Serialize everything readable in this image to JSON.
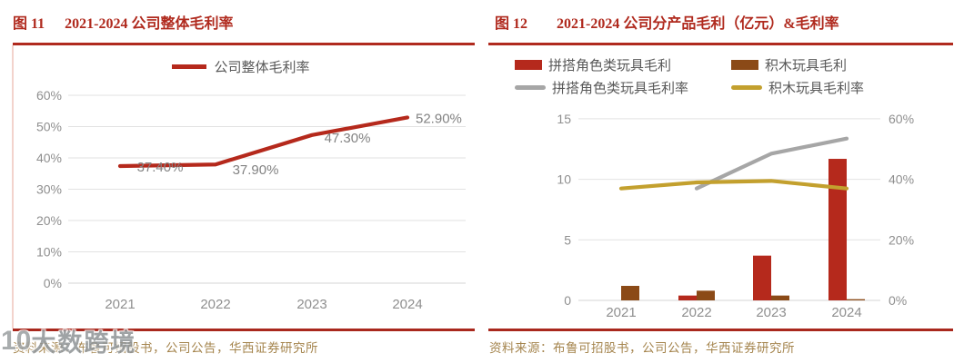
{
  "colors": {
    "accent_red": "#b5291c",
    "brown": "#8b4a17",
    "gray_line": "#a6a6a6",
    "gold": "#c3a02e",
    "grid": "#e2e2e2",
    "axis_text": "#8f8f8f",
    "data_label_text": "#828282",
    "legend_text": "#595959",
    "title_red": "#b02a1e",
    "source_text": "#a5854e"
  },
  "watermark": {
    "logo": "10",
    "text": "大数跨境"
  },
  "figures": [
    {
      "number": "图 11",
      "title": "2021-2024 公司整体毛利率",
      "source": "资料来源：布鲁可招股书，公司公告，华西证券研究所"
    },
    {
      "number": "图 12",
      "title": "2021-2024 公司分产品毛利（亿元）&毛利率",
      "source": "资料来源：布鲁可招股书，公司公告，华西证券研究所"
    }
  ],
  "chart_data": [
    {
      "type": "line",
      "title": "2021-2024 公司整体毛利率",
      "categories": [
        "2021",
        "2022",
        "2023",
        "2024"
      ],
      "series": [
        {
          "name": "公司整体毛利率",
          "color": "#b5291c",
          "values": [
            37.4,
            37.9,
            47.3,
            52.9
          ]
        }
      ],
      "data_labels": [
        "37.40%",
        "37.90%",
        "47.30%",
        "52.90%"
      ],
      "ylim": [
        0,
        60
      ],
      "yticks": [
        "0%",
        "10%",
        "20%",
        "30%",
        "40%",
        "50%",
        "60%"
      ],
      "grid": true,
      "legend_position": "top"
    },
    {
      "type": "bar",
      "subtype": "combo-bar-line",
      "title": "2021-2024 公司分产品毛利（亿元）&毛利率",
      "categories": [
        "2021",
        "2022",
        "2023",
        "2024"
      ],
      "bar_series": [
        {
          "name": "拼搭角色类玩具毛利",
          "color": "#b5291c",
          "values": [
            0,
            0.4,
            3.7,
            11.7
          ]
        },
        {
          "name": "积木玩具毛利",
          "color": "#8b4a17",
          "values": [
            1.2,
            0.8,
            0.4,
            0.1
          ]
        }
      ],
      "line_series": [
        {
          "name": "拼搭角色类玩具毛利率",
          "color": "#a6a6a6",
          "values": [
            null,
            37.0,
            48.5,
            53.5
          ]
        },
        {
          "name": "积木玩具毛利率",
          "color": "#c3a02e",
          "values": [
            37.0,
            39.0,
            39.5,
            37.0
          ]
        }
      ],
      "ylim_left": [
        0,
        15
      ],
      "yticks_left": [
        "0",
        "5",
        "10",
        "15"
      ],
      "ylim_right": [
        0,
        60
      ],
      "yticks_right": [
        "0%",
        "20%",
        "40%",
        "60%"
      ],
      "grid": true,
      "legend_position": "top"
    }
  ]
}
